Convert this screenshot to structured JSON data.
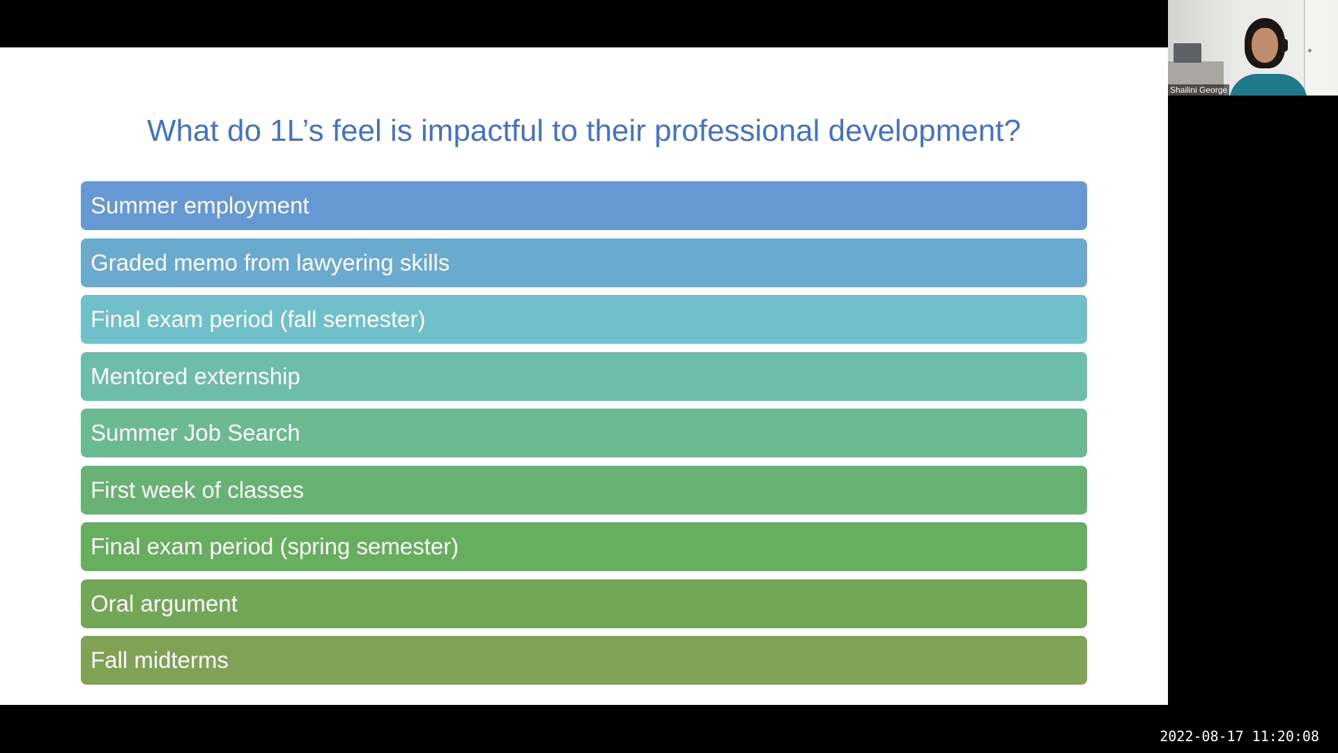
{
  "slide": {
    "title": "What do 1L’s feel is impactful to their professional development?",
    "items": [
      {
        "label": "Summer employment",
        "color": "#6699d4"
      },
      {
        "label": "Graded memo from lawyering skills",
        "color": "#6baacf"
      },
      {
        "label": "Final exam period (fall semester)",
        "color": "#70c0cb"
      },
      {
        "label": "Mentored externship",
        "color": "#6dbdac"
      },
      {
        "label": "Summer Job Search",
        "color": "#6cba92"
      },
      {
        "label": "First week of classes",
        "color": "#68b374"
      },
      {
        "label": "Final exam period (spring semester)",
        "color": "#67ae5e"
      },
      {
        "label": "Oral argument",
        "color": "#71a757"
      },
      {
        "label": "Fall midterms",
        "color": "#7fa254"
      }
    ]
  },
  "video": {
    "participant_name": "Shailini George"
  },
  "timestamp": "2022-08-17 11:20:08",
  "colors": {
    "title": "#4472c4",
    "background": "#000000",
    "slide_background": "#ffffff"
  }
}
